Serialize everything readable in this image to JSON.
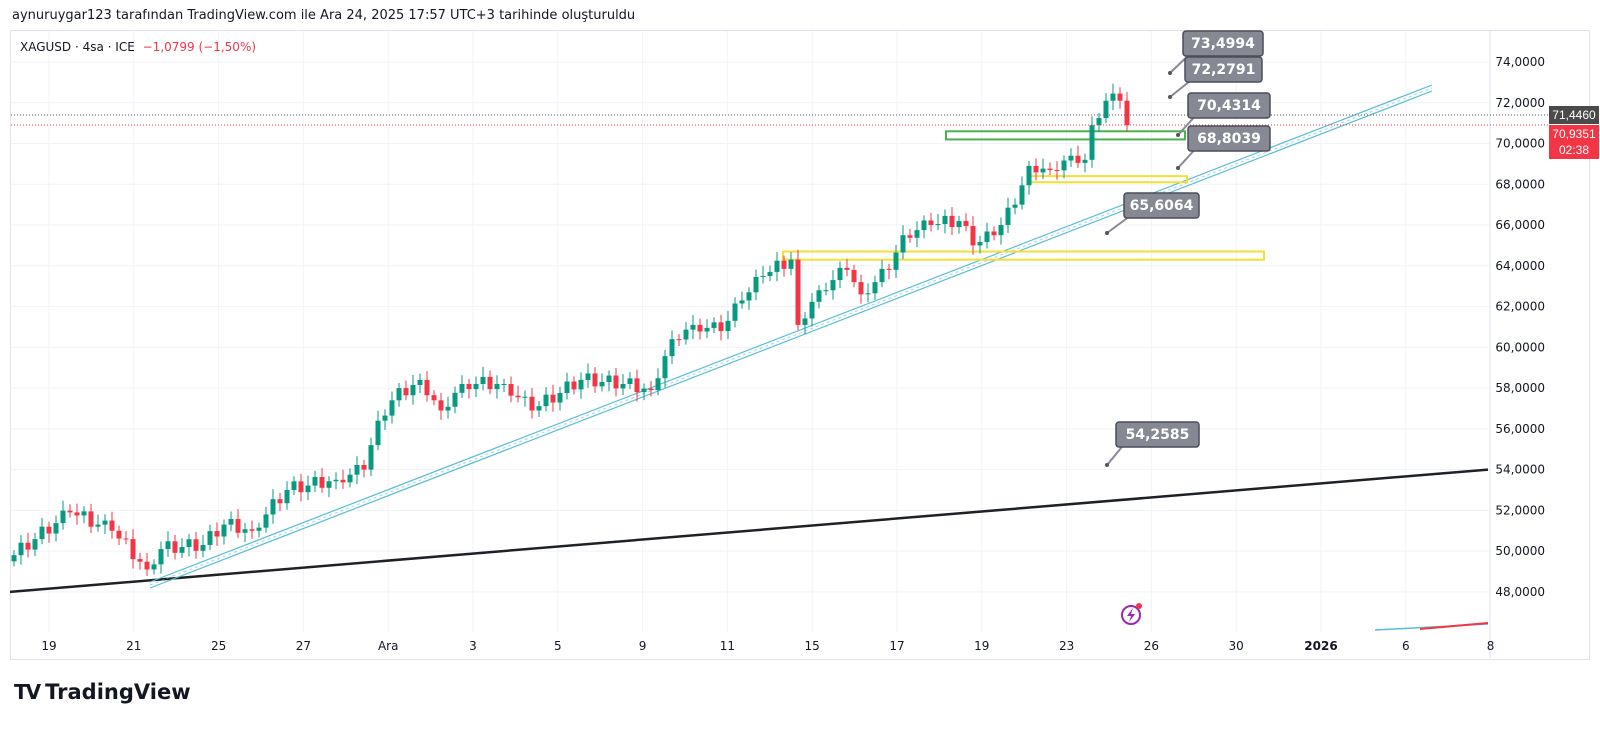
{
  "caption": "aynuruygar123 tarafından TradingView.com ile Ara 24, 2025 17:57 UTC+3 tarihinde oluşturuldu",
  "legend": {
    "symbol": "XAGUSD · 4sa · ICE",
    "change": "−1,0799 (−1,50%)"
  },
  "footer": {
    "logo_mark": "TV",
    "brand": "TradingView"
  },
  "colors": {
    "up": "#089981",
    "down": "#f23645",
    "channel": "#5bbcd6",
    "trend": "#1e2226",
    "green_zone": "#4caf50",
    "yellow_zone": "#f2e134",
    "label_bg": "#868993"
  },
  "chart_data": {
    "type": "candlestick",
    "symbol": "XAGUSD",
    "interval": "4h",
    "ylim": [
      46,
      75
    ],
    "y_ticks": [
      "74,0000",
      "72,0000",
      "70,0000",
      "68,0000",
      "66,0000",
      "64,0000",
      "62,0000",
      "60,0000",
      "58,0000",
      "56,0000",
      "54,0000",
      "52,0000",
      "50,0000",
      "48,0000"
    ],
    "y_tick_values": [
      74,
      72,
      70,
      68,
      66,
      64,
      62,
      60,
      58,
      56,
      54,
      52,
      50,
      48
    ],
    "x_ticks": [
      {
        "label": "19",
        "day": 0
      },
      {
        "label": "21",
        "day": 2
      },
      {
        "label": "25",
        "day": 4
      },
      {
        "label": "27",
        "day": 6
      },
      {
        "label": "Ara",
        "day": 8
      },
      {
        "label": "3",
        "day": 10
      },
      {
        "label": "5",
        "day": 12
      },
      {
        "label": "9",
        "day": 14
      },
      {
        "label": "11",
        "day": 16
      },
      {
        "label": "15",
        "day": 18
      },
      {
        "label": "17",
        "day": 20
      },
      {
        "label": "19",
        "day": 22
      },
      {
        "label": "23",
        "day": 24
      },
      {
        "label": "26",
        "day": 26
      },
      {
        "label": "30",
        "day": 28
      },
      {
        "label": "2026",
        "day": 30,
        "bold": true
      },
      {
        "label": "6",
        "day": 32
      },
      {
        "label": "8",
        "day": 34
      }
    ],
    "price_anchors": [
      [
        0,
        49.8
      ],
      [
        8,
        51.9
      ],
      [
        14,
        51.0
      ],
      [
        19,
        49.1
      ],
      [
        21,
        50.1
      ],
      [
        27,
        50.3
      ],
      [
        30,
        51.3
      ],
      [
        34,
        51.0
      ],
      [
        39,
        53.0
      ],
      [
        46,
        53.5
      ],
      [
        50,
        54.0
      ],
      [
        52,
        56.4
      ],
      [
        54,
        57.4
      ],
      [
        58,
        58.4
      ],
      [
        61,
        56.9
      ],
      [
        64,
        58.2
      ],
      [
        70,
        58.2
      ],
      [
        74,
        56.9
      ],
      [
        81,
        58.4
      ],
      [
        87,
        58.2
      ],
      [
        91,
        57.9
      ],
      [
        94,
        60.4
      ],
      [
        97,
        61.1
      ],
      [
        101,
        60.8
      ],
      [
        104,
        62.3
      ],
      [
        107,
        63.5
      ],
      [
        111,
        64.3
      ],
      [
        112,
        61.1
      ],
      [
        115,
        62.8
      ],
      [
        119,
        63.8
      ],
      [
        121,
        62.6
      ],
      [
        125,
        63.8
      ],
      [
        127,
        65.5
      ],
      [
        131,
        66.0
      ],
      [
        135,
        66.2
      ],
      [
        137,
        65.0
      ],
      [
        140,
        65.5
      ],
      [
        143,
        67.0
      ],
      [
        145,
        68.9
      ],
      [
        148,
        68.7
      ],
      [
        151,
        69.4
      ],
      [
        153,
        69.2
      ],
      [
        154,
        70.9
      ],
      [
        156,
        72.1
      ],
      [
        158,
        72.1
      ],
      [
        159,
        70.9
      ]
    ],
    "last_price": {
      "value": "70,9351",
      "countdown": "02:38"
    },
    "prev_close": {
      "value": "71,4460"
    },
    "price_labels": [
      "73,4994",
      "72,2791",
      "70,4314",
      "68,8039",
      "65,6064",
      "54,2585"
    ],
    "zones": [
      {
        "color": "green",
        "top": 70.6,
        "bottom": 70.2
      },
      {
        "color": "yellow",
        "top": 68.4,
        "bottom": 68.1
      },
      {
        "color": "yellow",
        "top": 64.7,
        "bottom": 64.3
      }
    ],
    "trendlines": [
      {
        "name": "support",
        "from": 48.0,
        "to": 54.0
      },
      {
        "name": "channel",
        "from": 48.3,
        "to": 72.7
      }
    ]
  }
}
